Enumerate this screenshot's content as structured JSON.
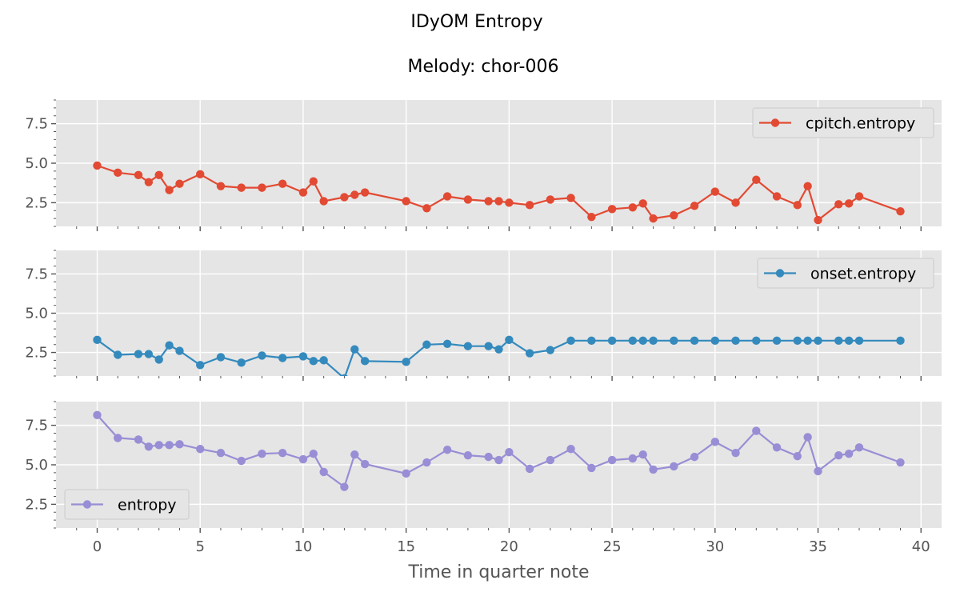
{
  "figure": {
    "suptitle": "IDyOM Entropy",
    "subtitle": "Melody: chor-006"
  },
  "colors": {
    "background": "#e5e5e5",
    "grid": "#ffffff",
    "tick": "#555555",
    "series": [
      "#e24a33",
      "#348abd",
      "#988ed5"
    ]
  },
  "chart_data": [
    {
      "type": "line",
      "title": "Melody: chor-006",
      "xlabel": "",
      "ylabel": "",
      "xlim": [
        -2,
        41
      ],
      "ylim": [
        1,
        9
      ],
      "yticks": [
        2.5,
        5.0,
        7.5
      ],
      "ytick_labels": [
        "2.5",
        "5.0",
        "7.5"
      ],
      "xticks": [
        0,
        5,
        10,
        15,
        20,
        25,
        30,
        35,
        40
      ],
      "grid": true,
      "legend": "top-right",
      "series": [
        {
          "name": "cpitch.entropy",
          "x": [
            0,
            1,
            2,
            2.5,
            3,
            3.5,
            4,
            5,
            6,
            7,
            8,
            9,
            10,
            10.5,
            11,
            12,
            12.5,
            13,
            15,
            16,
            17,
            18,
            19,
            19.5,
            20,
            21,
            22,
            23,
            24,
            25,
            26,
            26.5,
            27,
            28,
            29,
            30,
            31,
            32,
            33,
            34,
            34.5,
            35,
            36,
            36.5,
            37,
            39
          ],
          "y": [
            4.85,
            4.4,
            4.25,
            3.8,
            4.25,
            3.3,
            3.7,
            4.3,
            3.55,
            3.45,
            3.45,
            3.7,
            3.15,
            3.85,
            2.6,
            2.85,
            3.0,
            3.15,
            2.6,
            2.15,
            2.9,
            2.7,
            2.6,
            2.6,
            2.5,
            2.35,
            2.7,
            2.8,
            1.6,
            2.1,
            2.2,
            2.45,
            1.5,
            1.7,
            2.3,
            3.2,
            2.5,
            3.95,
            2.9,
            2.35,
            3.55,
            1.4,
            2.4,
            2.45,
            2.9,
            1.95
          ]
        }
      ]
    },
    {
      "type": "line",
      "xlabel": "",
      "ylabel": "",
      "xlim": [
        -2,
        41
      ],
      "ylim": [
        1,
        9
      ],
      "yticks": [
        2.5,
        5.0,
        7.5
      ],
      "ytick_labels": [
        "2.5",
        "5.0",
        "7.5"
      ],
      "xticks": [
        0,
        5,
        10,
        15,
        20,
        25,
        30,
        35,
        40
      ],
      "grid": true,
      "legend": "top-right",
      "series": [
        {
          "name": "onset.entropy",
          "x": [
            0,
            1,
            2,
            2.5,
            3,
            3.5,
            4,
            5,
            6,
            7,
            8,
            9,
            10,
            10.5,
            11,
            12,
            12.5,
            13,
            15,
            16,
            17,
            18,
            19,
            19.5,
            20,
            21,
            22,
            23,
            24,
            25,
            26,
            26.5,
            27,
            28,
            29,
            30,
            31,
            32,
            33,
            34,
            34.5,
            35,
            36,
            36.5,
            37,
            39
          ],
          "y": [
            3.3,
            2.35,
            2.4,
            2.4,
            2.05,
            2.95,
            2.6,
            1.7,
            2.2,
            1.85,
            2.3,
            2.15,
            2.25,
            1.95,
            2.0,
            0.85,
            2.7,
            1.95,
            1.9,
            3.0,
            3.05,
            2.9,
            2.9,
            2.7,
            3.3,
            2.45,
            2.65,
            3.25,
            3.25,
            3.25,
            3.25,
            3.25,
            3.25,
            3.25,
            3.25,
            3.25,
            3.25,
            3.25,
            3.25,
            3.25,
            3.25,
            3.25,
            3.25,
            3.25,
            3.25,
            3.25
          ]
        }
      ]
    },
    {
      "type": "line",
      "xlabel": "Time in quarter note",
      "ylabel": "",
      "xlim": [
        -2,
        41
      ],
      "ylim": [
        1,
        9
      ],
      "yticks": [
        2.5,
        5.0,
        7.5
      ],
      "ytick_labels": [
        "2.5",
        "5.0",
        "7.5"
      ],
      "xticks": [
        0,
        5,
        10,
        15,
        20,
        25,
        30,
        35,
        40
      ],
      "xtick_labels": [
        "0",
        "5",
        "10",
        "15",
        "20",
        "25",
        "30",
        "35",
        "40"
      ],
      "grid": true,
      "legend": "bottom-left",
      "series": [
        {
          "name": "entropy",
          "x": [
            0,
            1,
            2,
            2.5,
            3,
            3.5,
            4,
            5,
            6,
            7,
            8,
            9,
            10,
            10.5,
            11,
            12,
            12.5,
            13,
            15,
            16,
            17,
            18,
            19,
            19.5,
            20,
            21,
            22,
            23,
            24,
            25,
            26,
            26.5,
            27,
            28,
            29,
            30,
            31,
            32,
            33,
            34,
            34.5,
            35,
            36,
            36.5,
            37,
            39
          ],
          "y": [
            8.15,
            6.7,
            6.6,
            6.15,
            6.25,
            6.25,
            6.3,
            6.0,
            5.75,
            5.25,
            5.7,
            5.75,
            5.35,
            5.7,
            4.55,
            3.6,
            5.65,
            5.05,
            4.45,
            5.15,
            5.95,
            5.6,
            5.5,
            5.3,
            5.8,
            4.75,
            5.3,
            6.0,
            4.8,
            5.3,
            5.4,
            5.65,
            4.7,
            4.9,
            5.5,
            6.45,
            5.75,
            7.15,
            6.1,
            5.55,
            6.75,
            4.6,
            5.6,
            5.7,
            6.1,
            5.15
          ]
        }
      ]
    }
  ]
}
